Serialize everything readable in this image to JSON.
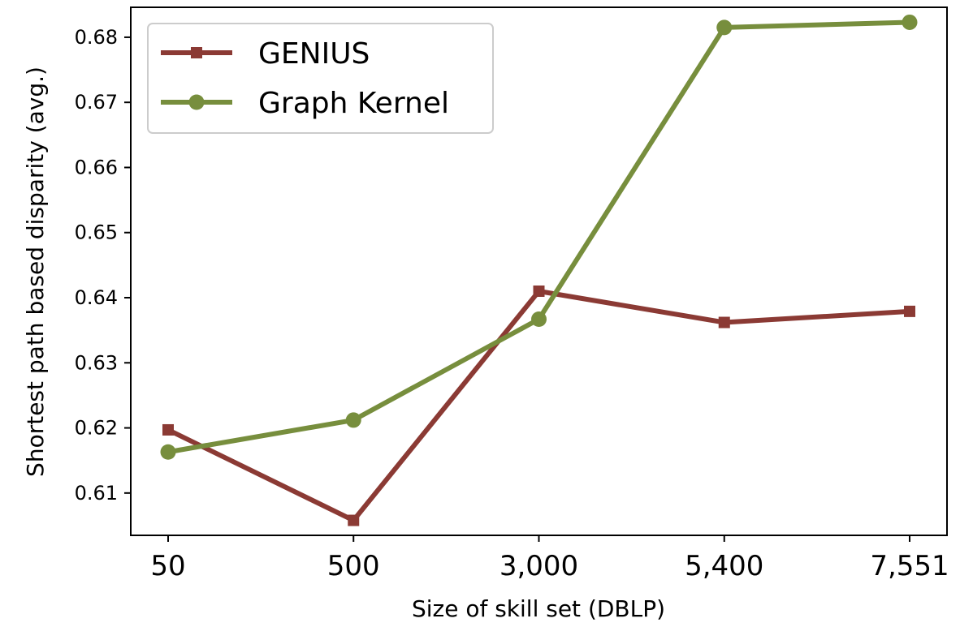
{
  "chart_data": {
    "type": "line",
    "categories": [
      "50",
      "500",
      "3,000",
      "5,400",
      "7,551"
    ],
    "xlabel": "Size of skill set (DBLP)",
    "ylabel": "Shortest path based disparity (avg.)",
    "ylim": [
      0.6035,
      0.6846
    ],
    "yticks": [
      0.61,
      0.62,
      0.63,
      0.64,
      0.65,
      0.66,
      0.67,
      0.68
    ],
    "ytick_labels": [
      "0.61",
      "0.62",
      "0.63",
      "0.64",
      "0.65",
      "0.66",
      "0.67",
      "0.68"
    ],
    "grid": false,
    "legend_position": "upper-left",
    "series": [
      {
        "name": "GENIUS",
        "values": [
          0.6197,
          0.6058,
          0.641,
          0.6362,
          0.6379
        ],
        "color": "#8b3a34",
        "marker": "square"
      },
      {
        "name": "Graph Kernel",
        "values": [
          0.6163,
          0.6212,
          0.6367,
          0.6815,
          0.6823
        ],
        "color": "#778e3d",
        "marker": "circle"
      }
    ]
  }
}
